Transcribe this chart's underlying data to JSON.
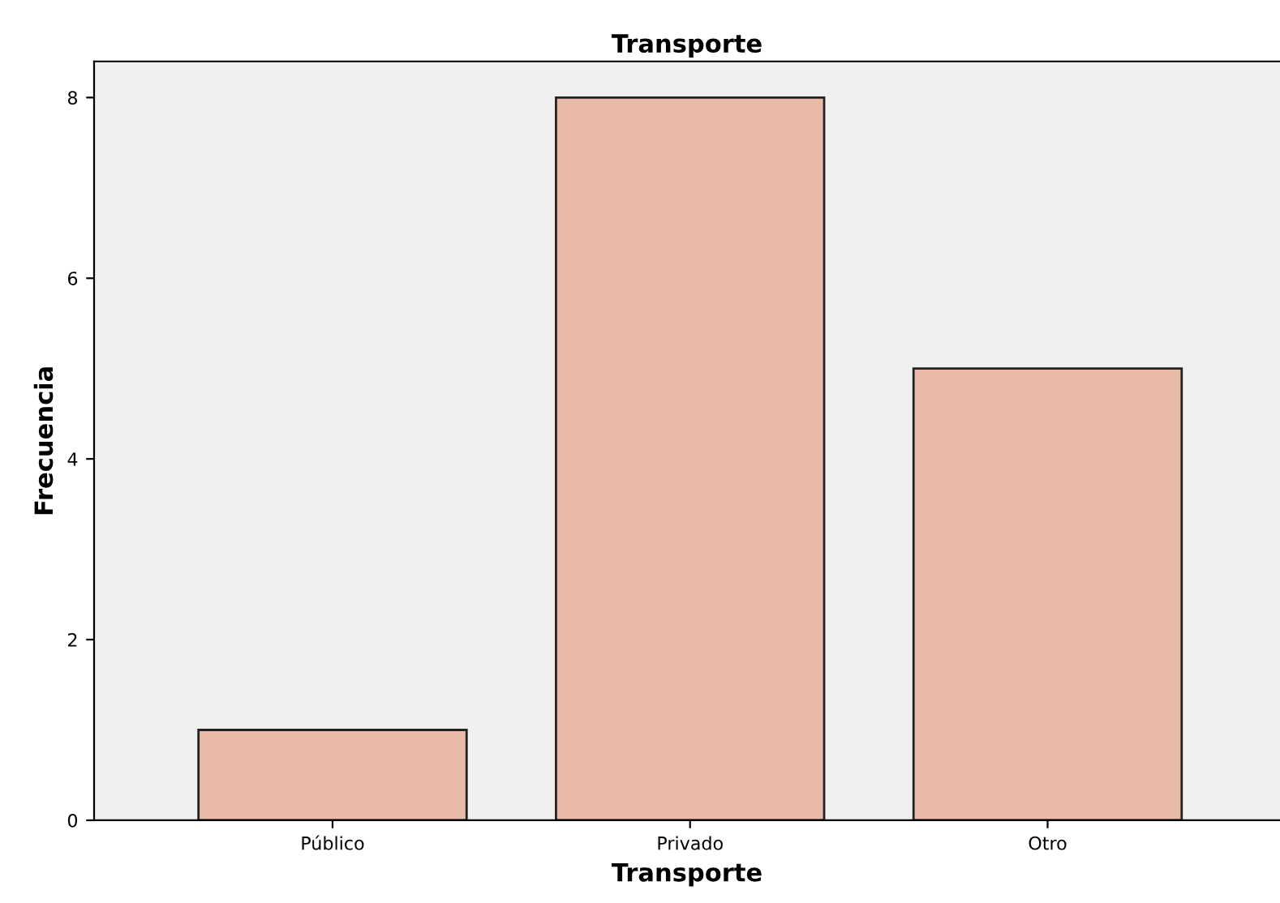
{
  "chart_data": {
    "type": "bar",
    "title": "Transporte",
    "xlabel": "Transporte",
    "ylabel": "Frecuencia",
    "categories": [
      "Público",
      "Privado",
      "Otro"
    ],
    "values": [
      1,
      8,
      5
    ],
    "color": "#eabaa9",
    "ylim": [
      0,
      8.4
    ],
    "yticks": [
      0,
      2,
      4,
      6,
      8
    ],
    "grid": false,
    "legend": false
  }
}
